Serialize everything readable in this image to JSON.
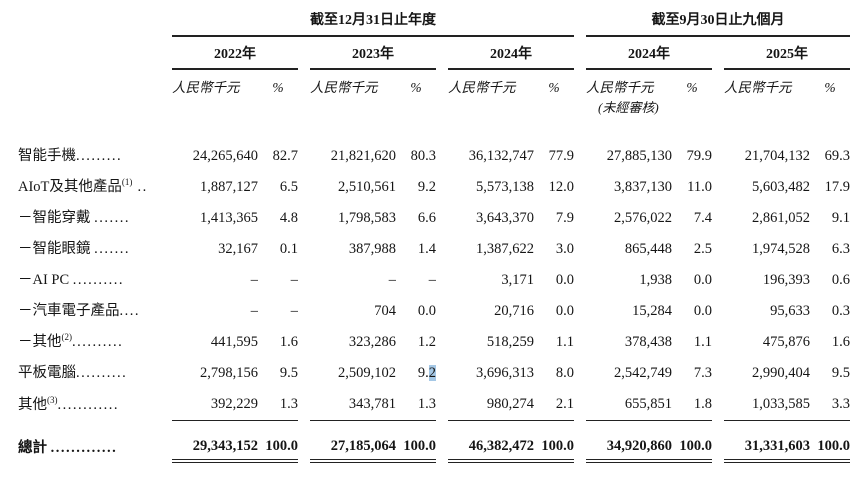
{
  "page": {
    "background": "#ffffff",
    "text_color": "#151515",
    "selection_highlight_color": "#a5c8e6"
  },
  "table": {
    "periods": [
      {
        "label": "截至12月31日止年度"
      },
      {
        "label": "截至9月30日止九個月"
      }
    ],
    "year_columns": [
      {
        "year": "2022年",
        "unit": "人民幣千元",
        "pct": "%",
        "note": ""
      },
      {
        "year": "2023年",
        "unit": "人民幣千元",
        "pct": "%",
        "note": ""
      },
      {
        "year": "2024年",
        "unit": "人民幣千元",
        "pct": "%",
        "note": ""
      },
      {
        "year": "2024年",
        "unit": "人民幣千元",
        "pct": "%",
        "note": "(未經審核)"
      },
      {
        "year": "2025年",
        "unit": "人民幣千元",
        "pct": "%",
        "note": ""
      }
    ],
    "rows": [
      {
        "label": "智能手機",
        "sup": "",
        "dots": ".........",
        "values": [
          "24,265,640",
          "82.7",
          "21,821,620",
          "80.3",
          "36,132,747",
          "77.9",
          "27,885,130",
          "79.9",
          "21,704,132",
          "69.3"
        ]
      },
      {
        "label": "AIoT及其他產品",
        "sup": "(1)",
        "dots": " ..",
        "values": [
          "1,887,127",
          "6.5",
          "2,510,561",
          "9.2",
          "5,573,138",
          "12.0",
          "3,837,130",
          "11.0",
          "5,603,482",
          "17.9"
        ]
      },
      {
        "label": "－智能穿戴 ",
        "sup": "",
        "dots": ".......",
        "values": [
          "1,413,365",
          "4.8",
          "1,798,583",
          "6.6",
          "3,643,370",
          "7.9",
          "2,576,022",
          "7.4",
          "2,861,052",
          "9.1"
        ]
      },
      {
        "label": "－智能眼鏡 ",
        "sup": "",
        "dots": ".......",
        "values": [
          "32,167",
          "0.1",
          "387,988",
          "1.4",
          "1,387,622",
          "3.0",
          "865,448",
          "2.5",
          "1,974,528",
          "6.3"
        ]
      },
      {
        "label": "－AI PC ",
        "sup": "",
        "dots": "..........",
        "values": [
          "–",
          "–",
          "–",
          "–",
          "3,171",
          "0.0",
          "1,938",
          "0.0",
          "196,393",
          "0.6"
        ]
      },
      {
        "label": "－汽車電子產品",
        "sup": "",
        "dots": "....",
        "values": [
          "–",
          "–",
          "704",
          "0.0",
          "20,716",
          "0.0",
          "15,284",
          "0.0",
          "95,633",
          "0.3"
        ]
      },
      {
        "label": "－其他",
        "sup": "(2)",
        "dots": "..........",
        "values": [
          "441,595",
          "1.6",
          "323,286",
          "1.2",
          "518,259",
          "1.1",
          "378,438",
          "1.1",
          "475,876",
          "1.6"
        ]
      },
      {
        "label": "平板電腦",
        "sup": "",
        "dots": "..........",
        "values": [
          "2,798,156",
          "9.5",
          "2,509,102",
          "9.2",
          "3,696,313",
          "8.0",
          "2,542,749",
          "7.3",
          "2,990,404",
          "9.5"
        ]
      },
      {
        "label": "其他",
        "sup": "(3)",
        "dots": "............",
        "values": [
          "392,229",
          "1.3",
          "343,781",
          "1.3",
          "980,274",
          "2.1",
          "655,851",
          "1.8",
          "1,033,585",
          "3.3"
        ],
        "rule_below": true
      }
    ],
    "total_row": {
      "label": "總計 ",
      "sup": "",
      "dots": ".............",
      "values": [
        "29,343,152",
        "100.0",
        "27,185,064",
        "100.0",
        "46,382,472",
        "100.0",
        "34,920,860",
        "100.0",
        "31,331,603",
        "100.0"
      ]
    },
    "highlight": {
      "row_index": 7,
      "value_index": 3,
      "prefix": "9.",
      "selected": "2"
    }
  }
}
